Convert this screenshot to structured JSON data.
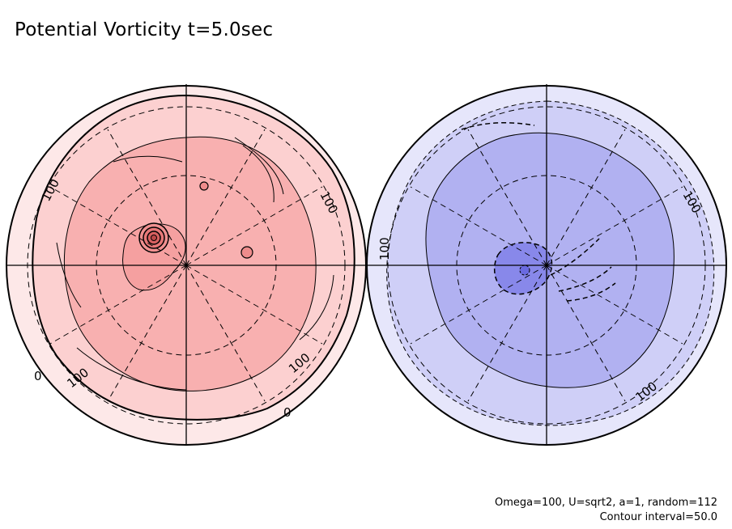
{
  "title": "Potential Vorticity t=5.0sec",
  "footer": {
    "params": "Omega=100, U=sqrt2, a=1, random=112",
    "interval": "Contour interval=50.0"
  },
  "colors": {
    "north_outer": "#fde8e8",
    "north_mid": "#fcd0d0",
    "north_inner": "#f8b0b0",
    "north_core": "#e87878",
    "south_outer": "#e6e6fb",
    "south_mid": "#cfcff7",
    "south_inner": "#b1b1f1",
    "south_core": "#7a7ae6"
  },
  "chart_data": {
    "type": "contour",
    "projection": "polar stereographic (two hemispheres)",
    "contour_interval": 50.0,
    "panels": [
      {
        "hemisphere": "north",
        "fill": "red",
        "contour_labels": [
          "100",
          "100",
          "100",
          "100",
          "0",
          "0"
        ],
        "max_center": "vortex left of pole"
      },
      {
        "hemisphere": "south",
        "fill": "blue",
        "contour_labels": [
          "100",
          "100",
          "100"
        ],
        "min_center": "vortex left of pole"
      }
    ]
  }
}
